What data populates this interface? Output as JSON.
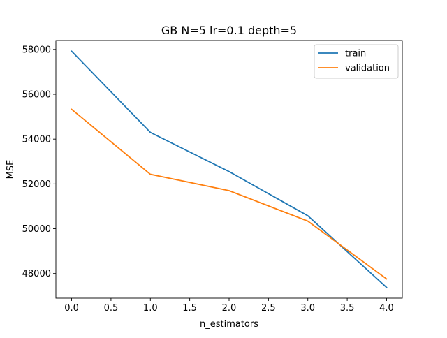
{
  "chart_data": {
    "type": "line",
    "title": "GB N=5 lr=0.1 depth=5",
    "xlabel": "n_estimators",
    "ylabel": "MSE",
    "xlim": [
      -0.2,
      4.2
    ],
    "ylim": [
      46900,
      58400
    ],
    "x": [
      0,
      1,
      2,
      3,
      4
    ],
    "xticks": [
      0.0,
      0.5,
      1.0,
      1.5,
      2.0,
      2.5,
      3.0,
      3.5,
      4.0
    ],
    "xtick_labels": [
      "0.0",
      "0.5",
      "1.0",
      "1.5",
      "2.0",
      "2.5",
      "3.0",
      "3.5",
      "4.0"
    ],
    "yticks": [
      48000,
      50000,
      52000,
      54000,
      56000,
      58000
    ],
    "ytick_labels": [
      "48000",
      "50000",
      "52000",
      "54000",
      "56000",
      "58000"
    ],
    "grid": false,
    "legend_position": "upper-right",
    "series": [
      {
        "name": "train",
        "color": "#1f77b4",
        "values": [
          57920,
          54300,
          52550,
          50580,
          47380
        ]
      },
      {
        "name": "validation",
        "color": "#ff7f0e",
        "values": [
          55330,
          52430,
          51700,
          50340,
          47760
        ]
      }
    ]
  }
}
